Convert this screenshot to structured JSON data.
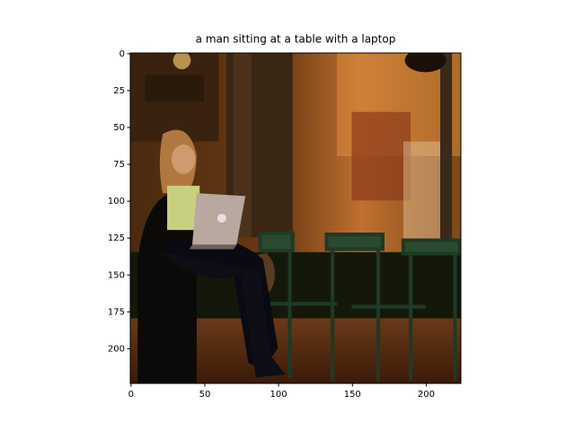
{
  "chart_data": {
    "type": "image",
    "title": "a man sitting at a table with a laptop",
    "xlim": [
      -0.5,
      223.5
    ],
    "ylim": [
      223.5,
      -0.5
    ],
    "xticks": [
      0,
      50,
      100,
      150,
      200
    ],
    "yticks": [
      0,
      25,
      50,
      75,
      100,
      125,
      150,
      175,
      200
    ]
  }
}
